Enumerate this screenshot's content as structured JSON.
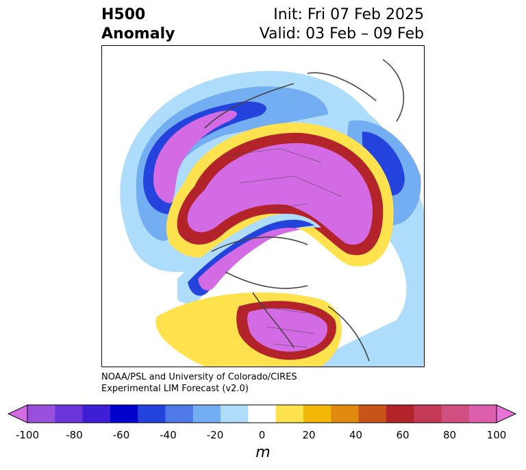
{
  "header": {
    "title_line1": "H500",
    "title_line2": "Anomaly",
    "init": "Init: Fri 07 Feb 2025",
    "valid": "Valid: 03 Feb – 09 Feb"
  },
  "credit": {
    "line1": "NOAA/PSL and University of Colorado/CIRES",
    "line2": "Experimental LIM Forecast (v2.0)"
  },
  "colorbar": {
    "unit": "m",
    "tick_labels": [
      "-100",
      "-80",
      "-60",
      "-40",
      "-20",
      "0",
      "20",
      "40",
      "60",
      "80",
      "100"
    ],
    "colors": [
      "#d36be5",
      "#9a4fdd",
      "#6a35d9",
      "#3f1fd6",
      "#0000cc",
      "#2443dd",
      "#4f79e8",
      "#74aef2",
      "#aedcfb",
      "#ffffff",
      "#ffe24d",
      "#f2b705",
      "#e08b0f",
      "#c9541a",
      "#b3232a",
      "#c23a55",
      "#cf4f80",
      "#dc5fae",
      "#e873d6"
    ],
    "extend": "both"
  },
  "map": {
    "projection": "north-polar-stereographic",
    "variable": "500 hPa geopotential height anomaly",
    "features": [
      {
        "name": "positive-anomaly-arctic-eurasia",
        "sign": "positive",
        "peak_m": 100
      },
      {
        "name": "negative-anomaly-canada-greenland-arc",
        "sign": "negative",
        "peak_m": -100
      },
      {
        "name": "positive-anomaly-eastern-north-america",
        "sign": "positive",
        "peak_m": 100
      },
      {
        "name": "negative-anomaly-east-asia",
        "sign": "negative",
        "peak_m": -70
      },
      {
        "name": "negative-anomaly-europe",
        "sign": "negative",
        "peak_m": -60
      }
    ]
  }
}
